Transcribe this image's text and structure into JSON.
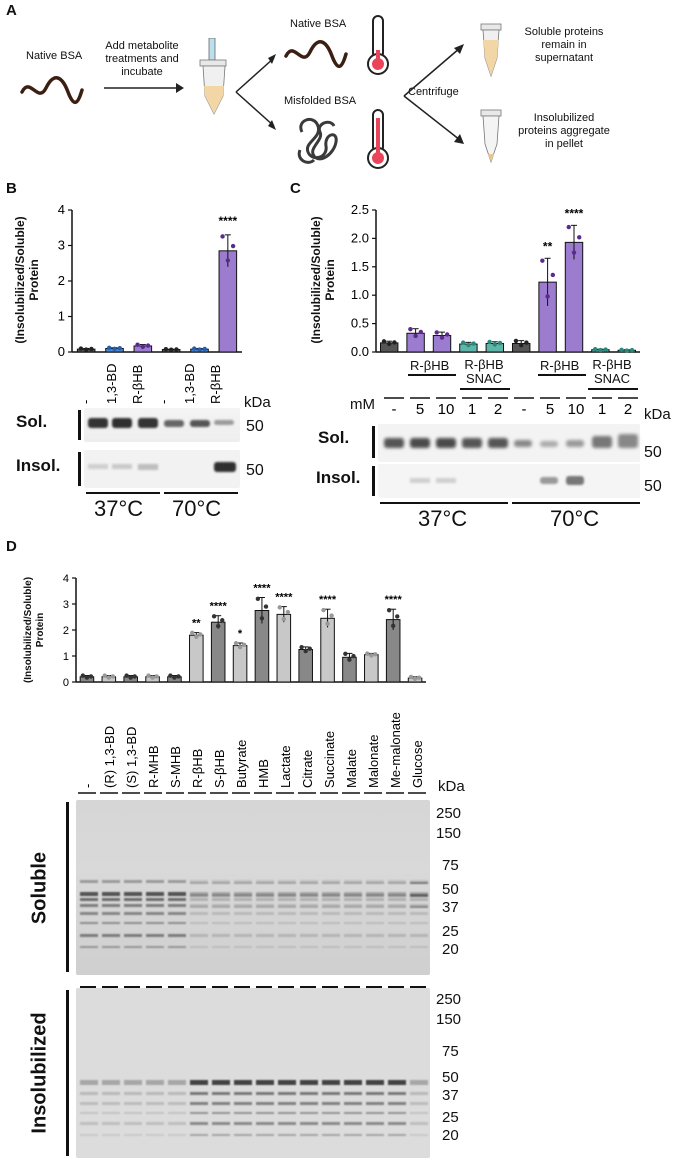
{
  "panelA": {
    "label": "A",
    "native_bsa_left": "Native BSA",
    "add_step": [
      "Add metabolite",
      "treatments and",
      "incubate"
    ],
    "native_bsa_top": "Native BSA",
    "misfolded_bsa": "Misfolded BSA",
    "centrifuge": "Centrifuge",
    "soluble_text": [
      "Soluble proteins",
      "remain in",
      "supernatant"
    ],
    "insol_text": [
      "Insolubilized",
      "proteins aggregate",
      "in pellet"
    ]
  },
  "panelB": {
    "label": "B",
    "ylabel1": "(Insolubilized/Soluble)",
    "ylabel2": "Protein",
    "lanes": [
      "-",
      "1,3-BD",
      "R-βHB",
      "-",
      "1,3-BD",
      "R-βHB"
    ],
    "kda": "kDa",
    "sol": "Sol.",
    "insol": "Insol.",
    "mw_sol": "50",
    "mw_insol": "50",
    "temp1": "37°C",
    "temp2": "70°C",
    "stars": "****"
  },
  "panelC": {
    "label": "C",
    "ylabel1": "(Insolubilized/Soluble)",
    "ylabel2": "Protein",
    "group_rbhb": "R-βHB",
    "group_snac1": "R-βHB",
    "group_snac2": "SNAC",
    "mm": "mM",
    "doses": [
      "-",
      "5",
      "10",
      "1",
      "2",
      "-",
      "5",
      "10",
      "1",
      "2"
    ],
    "kda": "kDa",
    "sol": "Sol.",
    "insol": "Insol.",
    "mw_sol": "50",
    "mw_insol": "50",
    "temp1": "37°C",
    "temp2": "70°C",
    "stars_a": "**",
    "stars_b": "****"
  },
  "panelD": {
    "label": "D",
    "ylabel1": "(Insolubilized/Soluble)",
    "ylabel2": "Protein",
    "lanes": [
      "-",
      "(R) 1,3-BD",
      "(S) 1,3-BD",
      "R-MHB",
      "S-MHB",
      "R-βHB",
      "S-βHB",
      "Butyrate",
      "HMB",
      "Lactate",
      "Citrate",
      "Succinate",
      "Malate",
      "Malonate",
      "Me-malonate",
      "Glucose"
    ],
    "kda": "kDa",
    "soluble": "Soluble",
    "insolubilized": "Insolubilized",
    "mw": [
      "250",
      "150",
      "75",
      "50",
      "37",
      "25",
      "20"
    ],
    "stars": [
      "",
      "",
      "",
      "",
      "",
      "**",
      "****",
      "*",
      "****",
      "****",
      "",
      "****",
      "",
      "",
      "****",
      ""
    ]
  },
  "chart_data": [
    {
      "type": "bar",
      "panel": "B",
      "categories": [
        "-",
        "1,3-BD",
        "R-βHB",
        "-",
        "1,3-BD",
        "R-βHB"
      ],
      "groups": [
        "37°C",
        "37°C",
        "37°C",
        "70°C",
        "70°C",
        "70°C"
      ],
      "values": [
        0.08,
        0.1,
        0.17,
        0.07,
        0.08,
        2.85
      ],
      "errors": [
        0.02,
        0.02,
        0.04,
        0.01,
        0.02,
        0.45
      ],
      "ylim": [
        0,
        4
      ],
      "yticks": [
        0,
        1,
        2,
        3,
        4
      ],
      "colors": [
        "#555555",
        "#4a8ad4",
        "#9c7ccf",
        "#555555",
        "#4a8ad4",
        "#9c7ccf"
      ],
      "ylabel": "(Insolubilized/Soluble) Protein"
    },
    {
      "type": "bar",
      "panel": "C",
      "categories": [
        "-",
        "R-βHB 5",
        "R-βHB 10",
        "R-βHB SNAC 1",
        "R-βHB SNAC 2",
        "-",
        "R-βHB 5",
        "R-βHB 10",
        "R-βHB SNAC 1",
        "R-βHB SNAC 2"
      ],
      "values": [
        0.16,
        0.33,
        0.29,
        0.14,
        0.15,
        0.15,
        1.23,
        1.93,
        0.04,
        0.03
      ],
      "errors": [
        0.03,
        0.08,
        0.06,
        0.03,
        0.03,
        0.05,
        0.42,
        0.3,
        0.01,
        0.01
      ],
      "ylim": [
        0,
        2.5
      ],
      "yticks": [
        0,
        0.5,
        1.0,
        1.5,
        2.0,
        2.5
      ],
      "colors": [
        "#555555",
        "#9c7ccf",
        "#9c7ccf",
        "#5fb5a8",
        "#5fb5a8",
        "#555555",
        "#9c7ccf",
        "#9c7ccf",
        "#5fb5a8",
        "#5fb5a8"
      ],
      "ylabel": "(Insolubilized/Soluble) Protein"
    },
    {
      "type": "bar",
      "panel": "D",
      "categories": [
        "-",
        "(R) 1,3-BD",
        "(S) 1,3-BD",
        "R-MHB",
        "S-MHB",
        "R-βHB",
        "S-βHB",
        "Butyrate",
        "HMB",
        "Lactate",
        "Citrate",
        "Succinate",
        "Malate",
        "Malonate",
        "Me-malonate",
        "Glucose"
      ],
      "values": [
        0.2,
        0.2,
        0.2,
        0.2,
        0.2,
        1.8,
        2.3,
        1.4,
        2.75,
        2.6,
        1.25,
        2.45,
        0.95,
        1.05,
        2.4,
        0.15
      ],
      "errors": [
        0.05,
        0.05,
        0.05,
        0.05,
        0.05,
        0.1,
        0.25,
        0.1,
        0.5,
        0.3,
        0.1,
        0.35,
        0.15,
        0.05,
        0.4,
        0.05
      ],
      "ylim": [
        0,
        4
      ],
      "yticks": [
        0,
        1,
        2,
        3,
        4
      ],
      "colors": [
        "#888888",
        "#c8c8c8",
        "#888888",
        "#c8c8c8",
        "#888888",
        "#c8c8c8",
        "#888888",
        "#c8c8c8",
        "#888888",
        "#c8c8c8",
        "#888888",
        "#c8c8c8",
        "#888888",
        "#c8c8c8",
        "#888888",
        "#c8c8c8"
      ],
      "ylabel": "(Insolubilized/Soluble) Protein"
    }
  ]
}
